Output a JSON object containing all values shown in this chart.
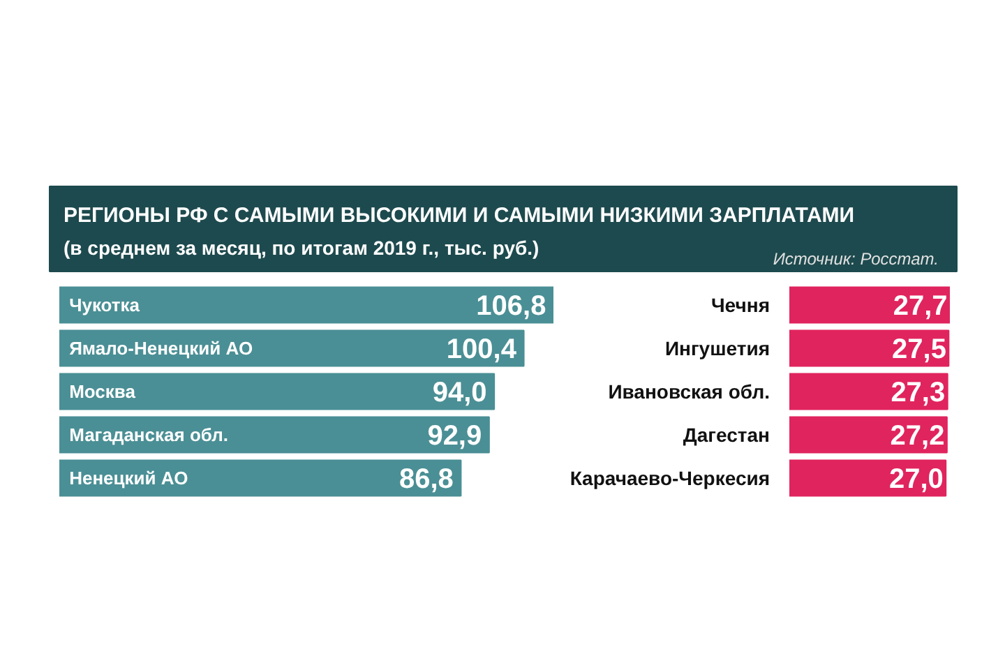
{
  "chart_data": [
    {
      "type": "bar",
      "orientation": "horizontal",
      "title": "РЕГИОНЫ РФ С САМЫМИ ВЫСОКИМИ И САМЫМИ НИЗКИМИ ЗАРПЛАТАМИ",
      "subtitle": "(в среднем за месяц, по итогам 2019 г., тыс. руб.)",
      "annotations": [
        "Источник: Росстат."
      ],
      "categories": [
        "Чукотка",
        "Ямало-Ненецкий АО",
        "Москва",
        "Магаданская обл.",
        "Ненецкий АО"
      ],
      "values": [
        106.8,
        100.4,
        94.0,
        92.9,
        86.8
      ],
      "value_labels": [
        "106,8",
        "100,4",
        "94,0",
        "92,9",
        "86,8"
      ],
      "color": "#4a8f95",
      "tick_labels": false
    },
    {
      "type": "bar",
      "orientation": "horizontal",
      "categories": [
        "Чечня",
        "Ингушетия",
        "Ивановская обл.",
        "Дагестан",
        "Карачаево-Черкесия"
      ],
      "values": [
        27.7,
        27.5,
        27.3,
        27.2,
        27.0
      ],
      "value_labels": [
        "27,7",
        "27,5",
        "27,3",
        "27,2",
        "27,0"
      ],
      "color": "#e0245e",
      "tick_labels": "y"
    }
  ]
}
